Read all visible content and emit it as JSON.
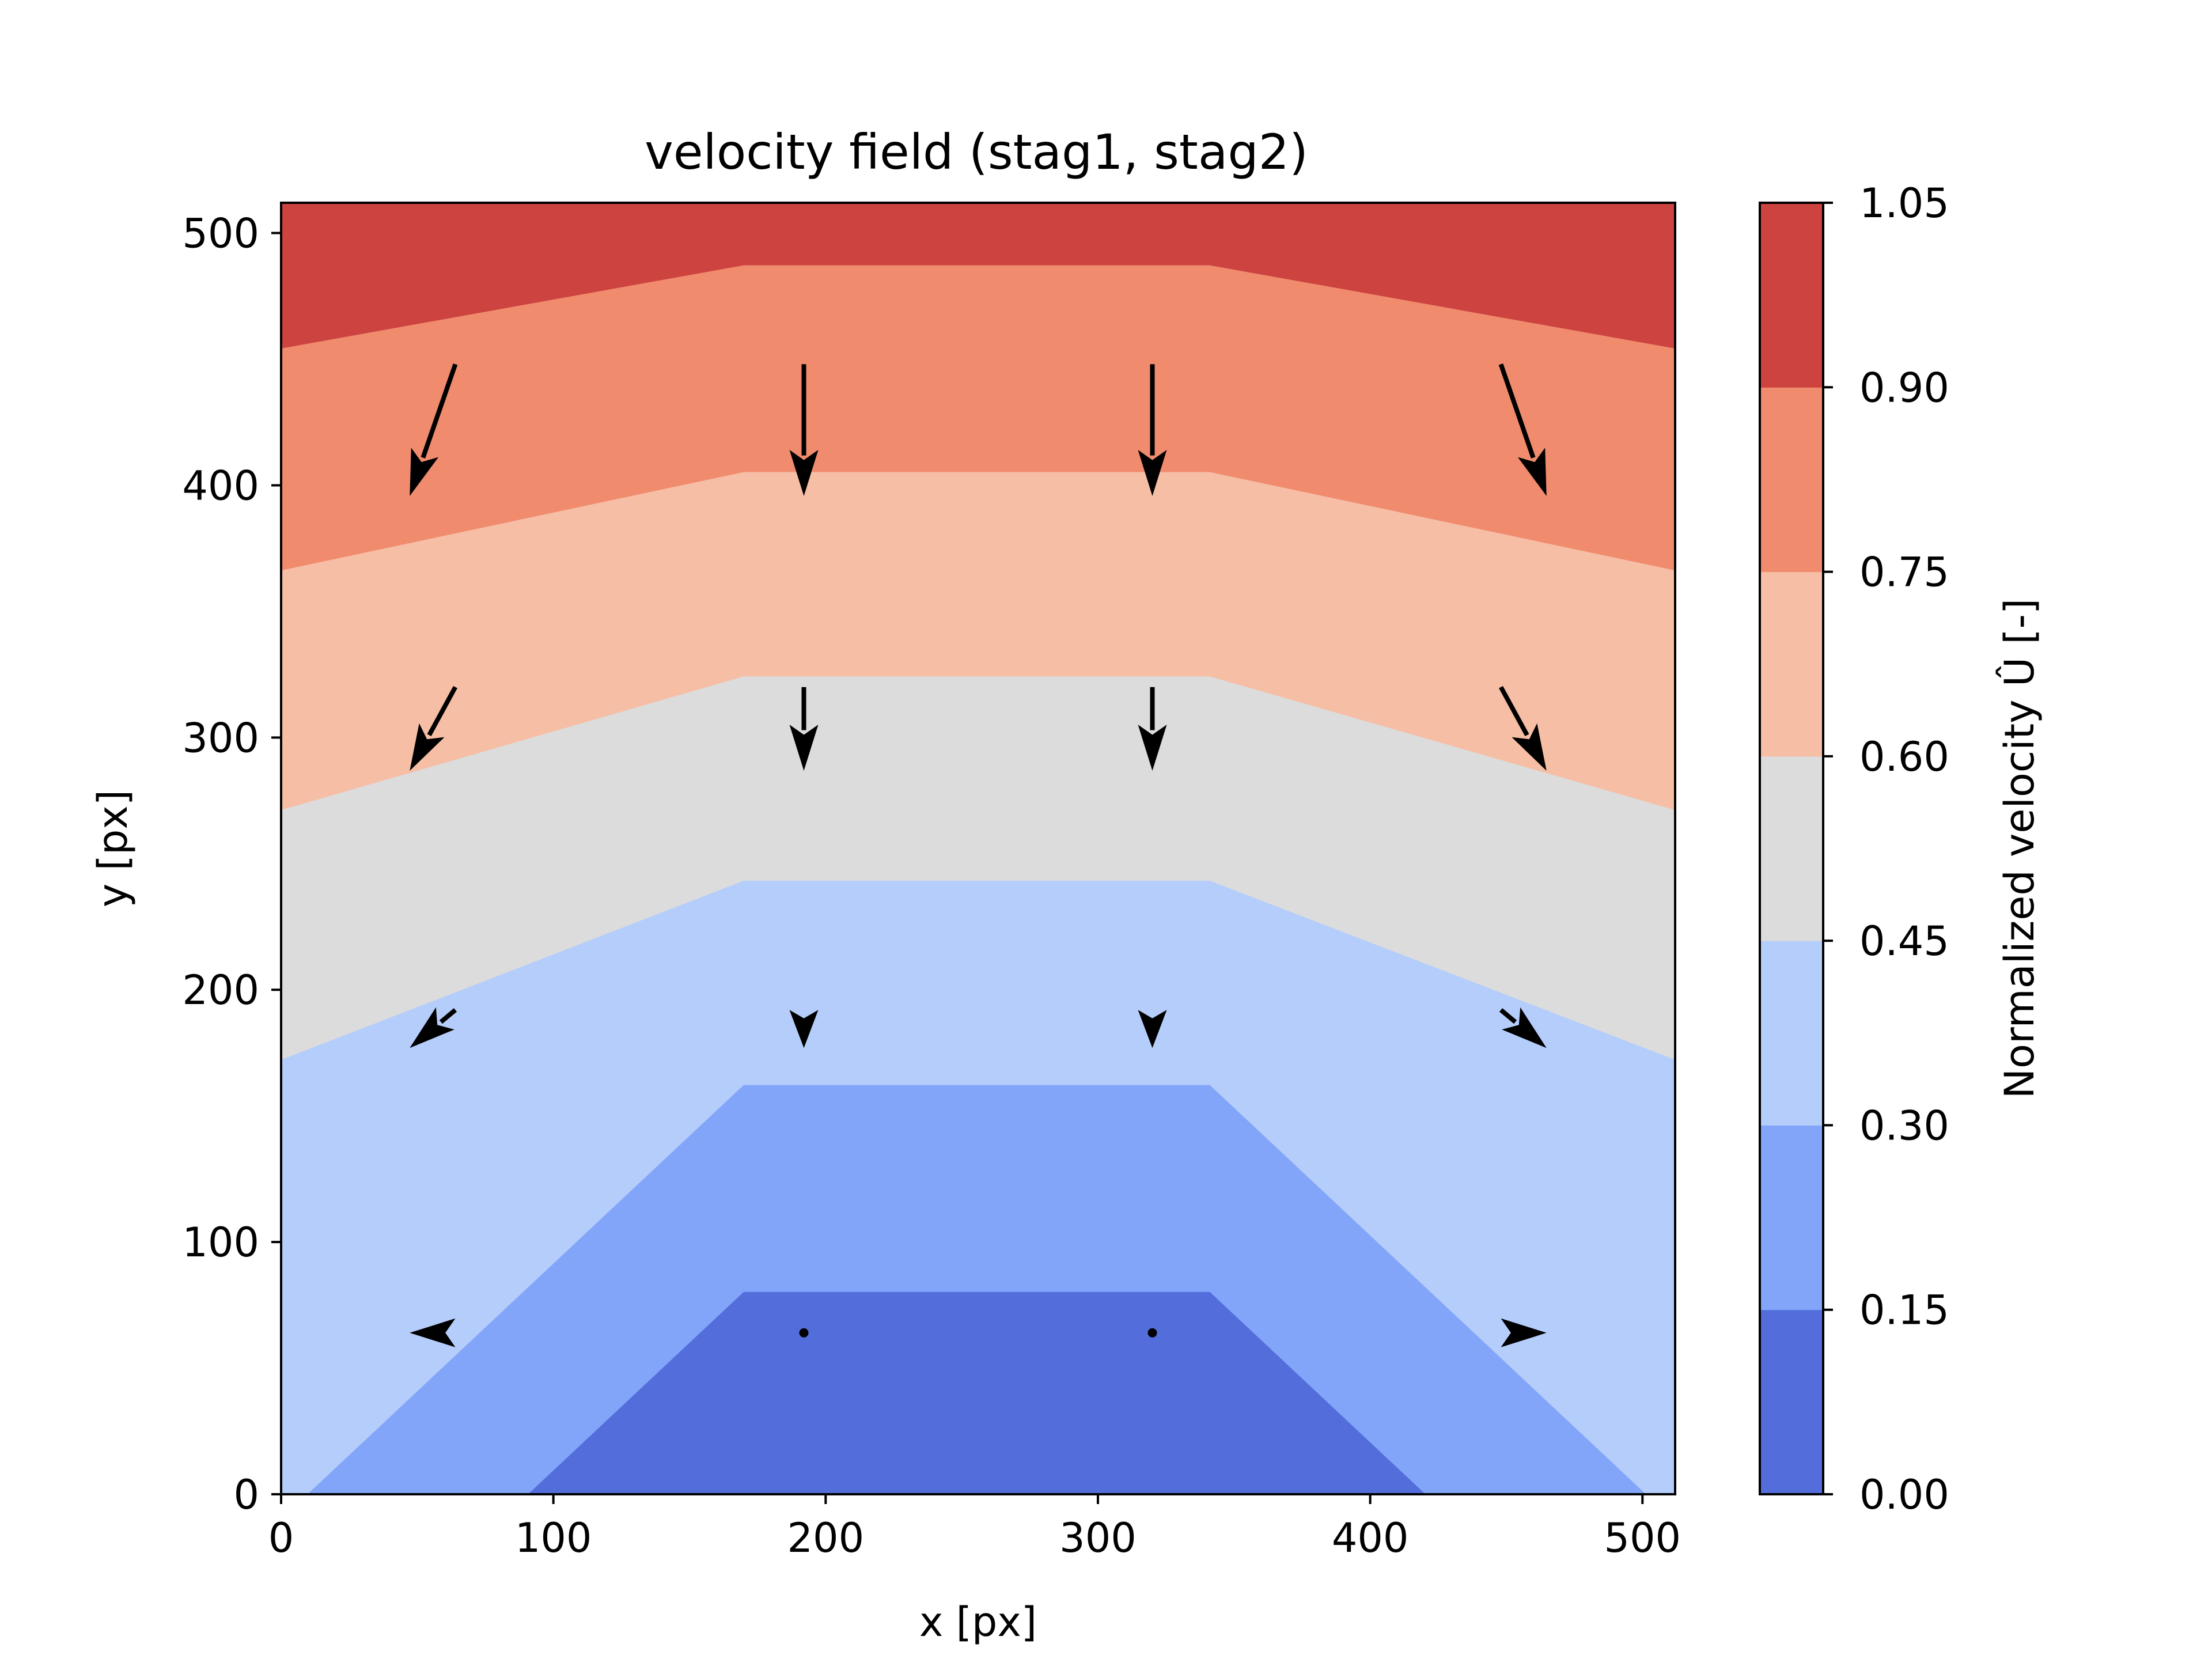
{
  "chart_data": {
    "type": "contourf+quiver",
    "title": "velocity field (stag1, stag2)",
    "xlabel": "x [px]",
    "ylabel": "y [px]",
    "xlim": [
      0,
      512
    ],
    "ylim": [
      0,
      512
    ],
    "x_ticks": [
      0,
      100,
      200,
      300,
      400,
      500
    ],
    "y_ticks": [
      0,
      100,
      200,
      300,
      400,
      500
    ],
    "grid": false,
    "colormap": "coolwarm",
    "colorbar": {
      "label": "Normalized velocity Û [-]",
      "levels": [
        0.0,
        0.15,
        0.3,
        0.45,
        0.6,
        0.75,
        0.9,
        1.05
      ],
      "tick_labels": [
        "0.00",
        "0.15",
        "0.30",
        "0.45",
        "0.60",
        "0.75",
        "0.90",
        "1.05"
      ],
      "colors": [
        "#536edb",
        "#82a5f9",
        "#b5cdfa",
        "#dcdcdc",
        "#f6bea5",
        "#f08b6e",
        "#cc4340"
      ]
    },
    "contour_bands": [
      {
        "level": [
          0.0,
          0.15
        ],
        "polygon": [
          [
            91,
            0
          ],
          [
            170,
            80
          ],
          [
            341,
            80
          ],
          [
            420,
            0
          ]
        ]
      },
      {
        "level": [
          0.15,
          0.3
        ],
        "polygon": [
          [
            10,
            0
          ],
          [
            170,
            162
          ],
          [
            341,
            162
          ],
          [
            501,
            0
          ]
        ]
      },
      {
        "level": [
          0.3,
          0.45
        ],
        "polygon": [
          [
            0,
            0
          ],
          [
            0,
            172
          ],
          [
            170,
            243
          ],
          [
            341,
            243
          ],
          [
            512,
            172
          ],
          [
            512,
            0
          ]
        ]
      },
      {
        "level": [
          0.45,
          0.6
        ],
        "polygon": [
          [
            0,
            0
          ],
          [
            0,
            271
          ],
          [
            170,
            324
          ],
          [
            341,
            324
          ],
          [
            512,
            271
          ],
          [
            512,
            0
          ]
        ]
      },
      {
        "level": [
          0.6,
          0.75
        ],
        "polygon": [
          [
            0,
            0
          ],
          [
            0,
            366
          ],
          [
            170,
            405
          ],
          [
            341,
            405
          ],
          [
            512,
            366
          ],
          [
            512,
            0
          ]
        ]
      },
      {
        "level": [
          0.75,
          0.9
        ],
        "polygon": [
          [
            0,
            0
          ],
          [
            0,
            454
          ],
          [
            170,
            487
          ],
          [
            341,
            487
          ],
          [
            512,
            454
          ],
          [
            512,
            0
          ]
        ]
      },
      {
        "level": [
          0.9,
          1.05
        ],
        "polygon": [
          [
            0,
            0
          ],
          [
            0,
            512
          ],
          [
            512,
            512
          ],
          [
            512,
            0
          ]
        ]
      }
    ],
    "quiver": [
      {
        "x": 64,
        "y": 448,
        "u": -0.18,
        "v": -0.52
      },
      {
        "x": 192,
        "y": 448,
        "u": 0.0,
        "v": -0.52
      },
      {
        "x": 320,
        "y": 448,
        "u": 0.0,
        "v": -0.52
      },
      {
        "x": 448,
        "y": 448,
        "u": 0.18,
        "v": -0.52
      },
      {
        "x": 64,
        "y": 320,
        "u": -0.18,
        "v": -0.33
      },
      {
        "x": 192,
        "y": 320,
        "u": 0.0,
        "v": -0.33
      },
      {
        "x": 320,
        "y": 320,
        "u": 0.0,
        "v": -0.33
      },
      {
        "x": 448,
        "y": 320,
        "u": 0.18,
        "v": -0.33
      },
      {
        "x": 64,
        "y": 192,
        "u": -0.18,
        "v": -0.15
      },
      {
        "x": 192,
        "y": 192,
        "u": 0.0,
        "v": -0.15
      },
      {
        "x": 320,
        "y": 192,
        "u": 0.0,
        "v": -0.15
      },
      {
        "x": 448,
        "y": 192,
        "u": 0.18,
        "v": -0.15
      },
      {
        "x": 64,
        "y": 64,
        "u": -0.18,
        "v": 0.0
      },
      {
        "x": 192,
        "y": 64,
        "u": 0.0,
        "v": 0.0
      },
      {
        "x": 320,
        "y": 64,
        "u": 0.0,
        "v": 0.0
      },
      {
        "x": 448,
        "y": 64,
        "u": 0.18,
        "v": 0.0
      }
    ]
  }
}
